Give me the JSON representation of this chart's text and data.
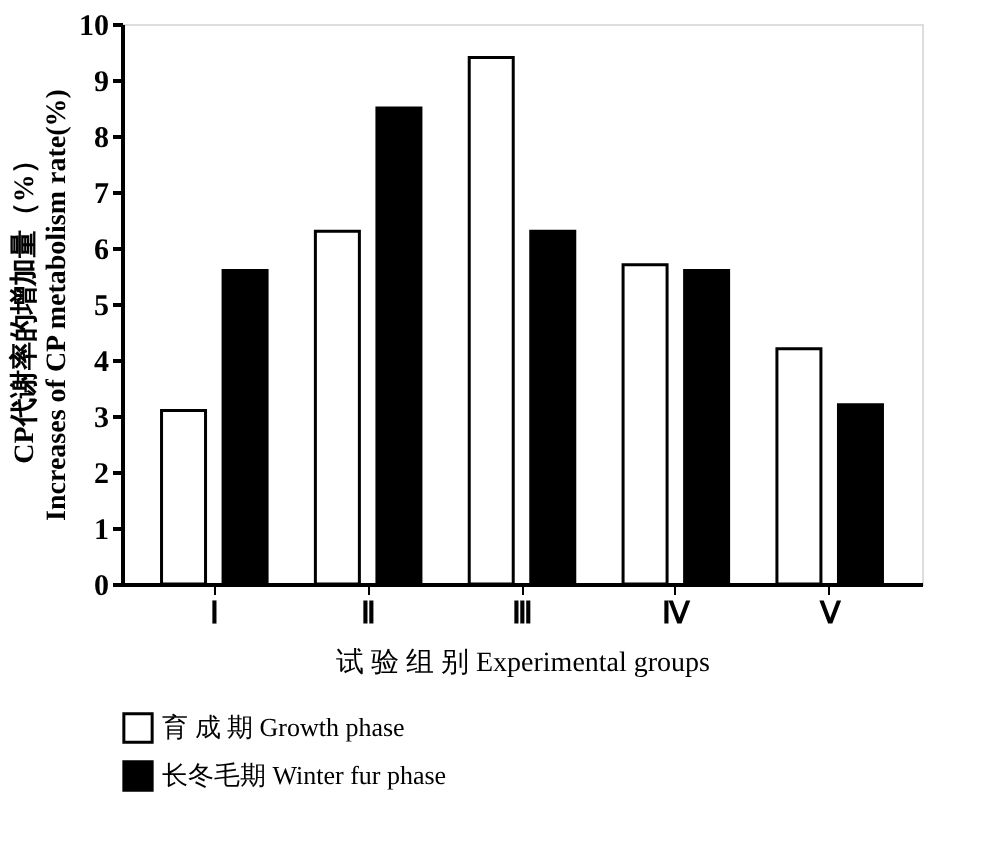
{
  "chart_data": {
    "type": "bar",
    "xlabel": "试 验 组 别  Experimental groups",
    "ylabel": "CP代谢率的增加量（%）\nIncreases of CP metabolism rate(%)",
    "categories": [
      "Ⅰ",
      "Ⅱ",
      "Ⅲ",
      "Ⅳ",
      "Ⅴ"
    ],
    "series": [
      {
        "name": "育 成 期  Growth phase",
        "color": "#ffffff",
        "values": [
          3.1,
          6.3,
          9.4,
          5.7,
          4.2
        ]
      },
      {
        "name": "长冬毛期  Winter fur phase",
        "color": "#000000",
        "values": [
          5.6,
          8.5,
          6.3,
          5.6,
          3.2
        ]
      }
    ],
    "ylim": [
      0,
      10
    ],
    "yticks": [
      0,
      1,
      2,
      3,
      4,
      5,
      6,
      7,
      8,
      9,
      10
    ],
    "grid": false,
    "legend": "bottom"
  }
}
